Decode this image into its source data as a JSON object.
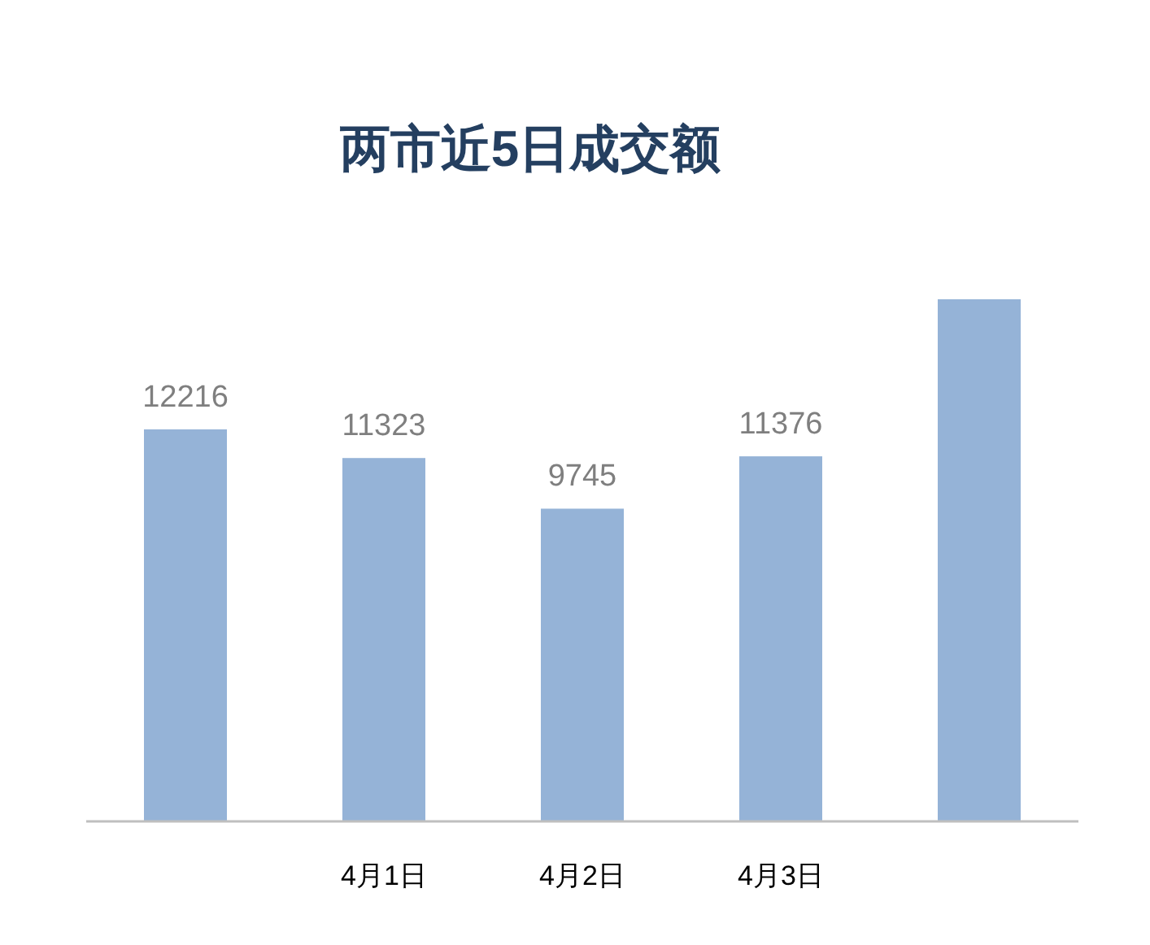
{
  "chart_data": {
    "type": "bar",
    "title": "两市近5日成交额",
    "categories": [
      null,
      "4月1日",
      "4月2日",
      "4月3日",
      null
    ],
    "values": [
      12216,
      11323,
      9745,
      11376,
      16270
    ],
    "value_labels": [
      "12216",
      "11323",
      "9745",
      "11376",
      null
    ],
    "color": "#95b3d7"
  }
}
